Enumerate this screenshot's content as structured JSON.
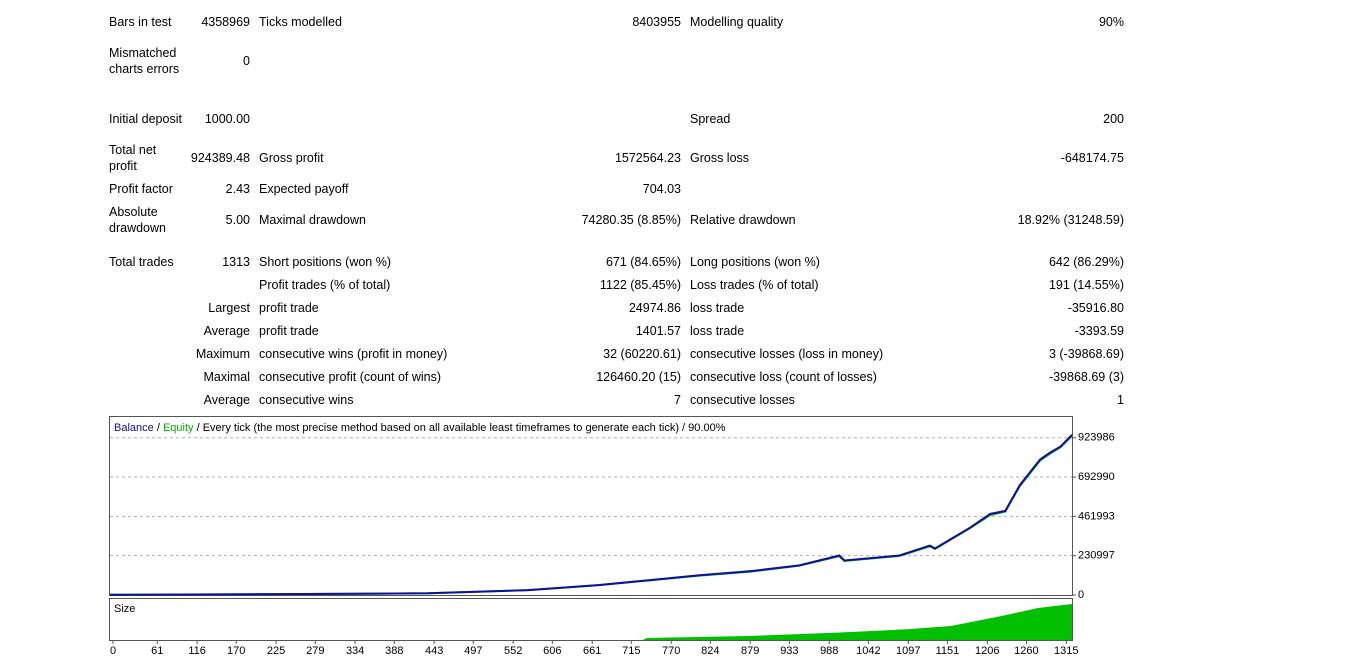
{
  "report": {
    "rows": [
      {
        "label": "Bars in test",
        "value": "4358969",
        "label2": "Ticks modelled",
        "value2": "8403955",
        "label3": "Modelling quality",
        "value3": "90%"
      },
      {
        "label": "Mismatched charts errors",
        "value": "0"
      },
      {
        "label": "Initial deposit",
        "value": "1000.00",
        "label3": "Spread",
        "value3": "200"
      },
      {
        "label": "Total net profit",
        "value": "924389.48",
        "label2": "Gross profit",
        "value2": "1572564.23",
        "label3": "Gross loss",
        "value3": "-648174.75"
      },
      {
        "label": "Profit factor",
        "value": "2.43",
        "label2": "Expected payoff",
        "value2": "704.03"
      },
      {
        "label": "Absolute drawdown",
        "value": "5.00",
        "label2": "Maximal drawdown",
        "value2": "74280.35 (8.85%)",
        "label3": "Relative drawdown",
        "value3": "18.92% (31248.59)"
      },
      {
        "label": "Total trades",
        "value": "1313",
        "label2": "Short positions (won %)",
        "value2": "671 (84.65%)",
        "label3": "Long positions (won %)",
        "value3": "642 (86.29%)"
      },
      {
        "label2": "Profit trades (% of total)",
        "value2": "1122 (85.45%)",
        "label3": "Loss trades (% of total)",
        "value3": "191 (14.55%)"
      },
      {
        "label": "Largest",
        "label2": "profit trade",
        "value2": "24974.86",
        "label3": "loss trade",
        "value3": "-35916.80"
      },
      {
        "label": "Average",
        "label2": "profit trade",
        "value2": "1401.57",
        "label3": "loss trade",
        "value3": "-3393.59"
      },
      {
        "label": "Maximum",
        "label2": "consecutive wins (profit in money)",
        "value2": "32 (60220.61)",
        "label3": "consecutive losses (loss in money)",
        "value3": "3 (-39868.69)"
      },
      {
        "label": "Maximal",
        "label2": "consecutive profit (count of wins)",
        "value2": "126460.20 (15)",
        "label3": "consecutive loss (count of losses)",
        "value3": "-39868.69 (3)"
      },
      {
        "label": "Average",
        "label2": "consecutive wins",
        "value2": "7",
        "label3": "consecutive losses",
        "value3": "1"
      }
    ]
  },
  "chart_data": [
    {
      "type": "line",
      "separator": "/",
      "subtitle": "Every tick (the most precise method based on all available least timeframes to generate each tick) / 90.00%",
      "x": [
        0,
        200,
        439,
        577,
        674,
        743,
        813,
        882,
        951,
        1006,
        1013,
        1089,
        1131,
        1138,
        1186,
        1214,
        1235,
        1255,
        1283,
        1297,
        1311,
        1327
      ],
      "series": [
        {
          "name": "Equity",
          "color": "#00b400",
          "values": [
            1000,
            4000,
            10000,
            29000,
            58000,
            85000,
            114000,
            137000,
            172000,
            228000,
            200000,
            230000,
            286000,
            270000,
            392000,
            470000,
            490000,
            640000,
            790000,
            832000,
            868000,
            935000
          ]
        },
        {
          "name": "Balance",
          "color": "#1010a0",
          "values": [
            1000,
            4000,
            10000,
            29000,
            58000,
            87000,
            116000,
            139000,
            174000,
            232000,
            203000,
            232000,
            290000,
            273000,
            395000,
            476000,
            494000,
            645000,
            796000,
            837000,
            872000,
            941000
          ]
        }
      ],
      "xlim": [
        0,
        1327
      ],
      "ylim": [
        0,
        1040000
      ],
      "yticks": [
        0,
        230997,
        461993,
        692990,
        923986
      ],
      "grid": true
    },
    {
      "type": "area",
      "title": "Size",
      "color": "#00c000",
      "x": [
        0,
        735,
        740,
        880,
        1000,
        1100,
        1160,
        1230,
        1280,
        1327
      ],
      "values": [
        0,
        0,
        0.05,
        0.1,
        0.18,
        0.27,
        0.35,
        0.6,
        0.8,
        0.9
      ],
      "xlim": [
        0,
        1327
      ],
      "ylim": [
        0,
        1
      ],
      "xticks": [
        0,
        61,
        116,
        170,
        225,
        279,
        334,
        388,
        443,
        497,
        552,
        606,
        661,
        715,
        770,
        824,
        879,
        933,
        988,
        1042,
        1097,
        1151,
        1206,
        1260,
        1315
      ]
    }
  ]
}
